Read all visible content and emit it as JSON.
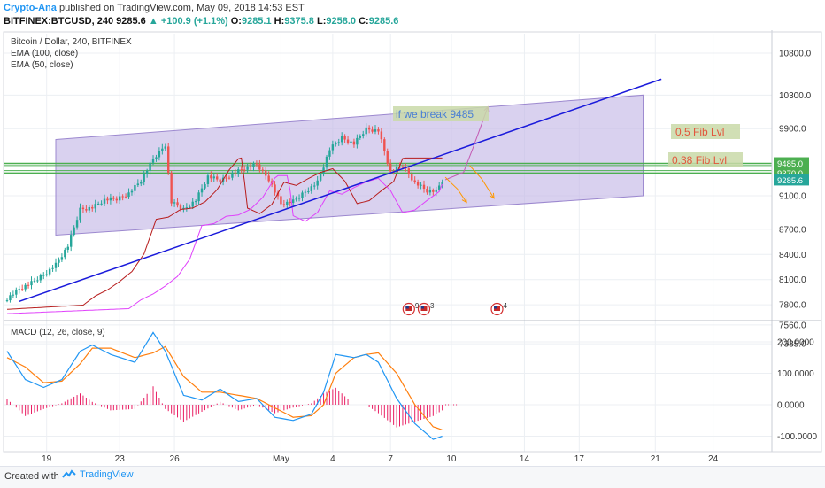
{
  "header": {
    "author": "Crypto-Ana",
    "published": "published on TradingView.com, May 09, 2018 14:53 EST",
    "symbol": "BITFINEX:BTCUSD, 240",
    "last": "9285.6",
    "arrow": "▲",
    "change": "+100.9 (+1.1%)",
    "o_label": "O:",
    "o_value": "9285.1",
    "h_label": "H:",
    "h_value": "9375.8",
    "l_label": "L:",
    "l_value": "9258.0",
    "c_label": "C:",
    "c_value": "9285.6"
  },
  "legend": {
    "title": "Bitcoin / Dollar, 240, BITFINEX",
    "ema100": "EMA (100, close)",
    "ema50": "EMA (50, close)",
    "macd": "MACD (12, 26, close, 9)"
  },
  "annotations": {
    "break_text": "if we break 9485",
    "fib05": "0.5 Fib Lvl",
    "fib038": "0.38 Fib Lvl",
    "events": [
      "9",
      "3",
      "4"
    ]
  },
  "footer": {
    "created": "Created with",
    "brand": "TradingView"
  },
  "colors": {
    "up": "#26a69a",
    "down": "#ef5350",
    "ema100": "#b71c1c",
    "ema50": "#e040fb",
    "trend": "#1a1adb",
    "channel": "#c5b8e6",
    "fib": "#4caf50",
    "macd": "#2196f3",
    "signal": "#ff7f0e",
    "hist": "#e91e63",
    "arrow": "#ff9800"
  },
  "chart_data": {
    "type": "candlestick",
    "price_axis": {
      "ticks": [
        10800,
        10300,
        9900,
        9485,
        9370,
        9285.6,
        9100,
        8700,
        8400,
        8100,
        7800,
        7560,
        7335
      ],
      "labels": [
        "10800.0",
        "10300.0",
        "9900.0",
        "9485.0",
        "9370.0",
        "9285.6",
        "9100.0",
        "8700.0",
        "8400.0",
        "8100.0",
        "7800.0",
        "7560.0",
        "7335.0"
      ],
      "highlight": {
        "9485": "#4caf50",
        "9370": "#4caf50",
        "9285.6": "#26a69a"
      }
    },
    "macd_axis": {
      "ticks": [
        200,
        100,
        0,
        -100
      ],
      "labels": [
        "200.0000",
        "100.0000",
        "0.0000",
        "-100.0000"
      ]
    },
    "time_axis": {
      "labels": [
        "19",
        "23",
        "26",
        "May",
        "4",
        "7",
        "10",
        "14",
        "17",
        "21",
        "24"
      ],
      "bar_index": [
        13,
        37,
        55,
        90,
        107,
        126,
        146,
        170,
        188,
        213,
        232
      ]
    },
    "fib_levels": [
      {
        "name": "0.5 Fib Lvl",
        "price": 9485
      },
      {
        "name": "0.38 Fib Lvl",
        "price": 9370
      }
    ],
    "channel": {
      "start_bar": 16,
      "end_bar": 209,
      "upper": [
        9770,
        10300
      ],
      "lower": [
        8630,
        9100
      ]
    },
    "trendline": {
      "start_bar": 4,
      "start_price": 7840,
      "end_bar": 215,
      "end_price": 10490
    },
    "close_anchors": [
      [
        0,
        7880
      ],
      [
        4,
        7990
      ],
      [
        8,
        8060
      ],
      [
        12,
        8160
      ],
      [
        16,
        8280
      ],
      [
        20,
        8500
      ],
      [
        24,
        8940
      ],
      [
        28,
        8960
      ],
      [
        32,
        9050
      ],
      [
        36,
        9060
      ],
      [
        40,
        9130
      ],
      [
        44,
        9280
      ],
      [
        48,
        9530
      ],
      [
        52,
        9710
      ],
      [
        54,
        9020
      ],
      [
        58,
        8940
      ],
      [
        62,
        9050
      ],
      [
        66,
        9330
      ],
      [
        70,
        9280
      ],
      [
        74,
        9360
      ],
      [
        78,
        9430
      ],
      [
        82,
        9470
      ],
      [
        86,
        9300
      ],
      [
        90,
        9000
      ],
      [
        94,
        9030
      ],
      [
        98,
        9150
      ],
      [
        102,
        9260
      ],
      [
        106,
        9650
      ],
      [
        110,
        9790
      ],
      [
        114,
        9720
      ],
      [
        118,
        9900
      ],
      [
        122,
        9880
      ],
      [
        126,
        9380
      ],
      [
        130,
        9460
      ],
      [
        134,
        9260
      ],
      [
        138,
        9160
      ],
      [
        141,
        9150
      ],
      [
        143,
        9286
      ]
    ],
    "macd_anchors": [
      [
        0,
        170
      ],
      [
        6,
        80
      ],
      [
        12,
        55
      ],
      [
        18,
        80
      ],
      [
        24,
        170
      ],
      [
        28,
        190
      ],
      [
        34,
        160
      ],
      [
        42,
        135
      ],
      [
        48,
        230
      ],
      [
        52,
        170
      ],
      [
        58,
        30
      ],
      [
        64,
        15
      ],
      [
        70,
        50
      ],
      [
        76,
        10
      ],
      [
        82,
        20
      ],
      [
        88,
        -40
      ],
      [
        94,
        -50
      ],
      [
        100,
        -30
      ],
      [
        104,
        40
      ],
      [
        108,
        160
      ],
      [
        114,
        150
      ],
      [
        118,
        160
      ],
      [
        122,
        135
      ],
      [
        128,
        20
      ],
      [
        134,
        -60
      ],
      [
        140,
        -110
      ],
      [
        143,
        -100
      ]
    ],
    "signal_anchors": [
      [
        0,
        150
      ],
      [
        6,
        120
      ],
      [
        12,
        70
      ],
      [
        18,
        75
      ],
      [
        24,
        130
      ],
      [
        28,
        180
      ],
      [
        34,
        180
      ],
      [
        42,
        150
      ],
      [
        48,
        165
      ],
      [
        52,
        185
      ],
      [
        58,
        90
      ],
      [
        64,
        40
      ],
      [
        70,
        40
      ],
      [
        76,
        30
      ],
      [
        82,
        20
      ],
      [
        88,
        -10
      ],
      [
        94,
        -40
      ],
      [
        100,
        -35
      ],
      [
        104,
        0
      ],
      [
        108,
        100
      ],
      [
        114,
        150
      ],
      [
        118,
        160
      ],
      [
        122,
        165
      ],
      [
        128,
        100
      ],
      [
        134,
        0
      ],
      [
        140,
        -70
      ],
      [
        143,
        -80
      ]
    ],
    "events": [
      {
        "bar": 132,
        "label": "9"
      },
      {
        "bar": 137,
        "label": "3"
      },
      {
        "bar": 161,
        "label": "4"
      }
    ]
  }
}
